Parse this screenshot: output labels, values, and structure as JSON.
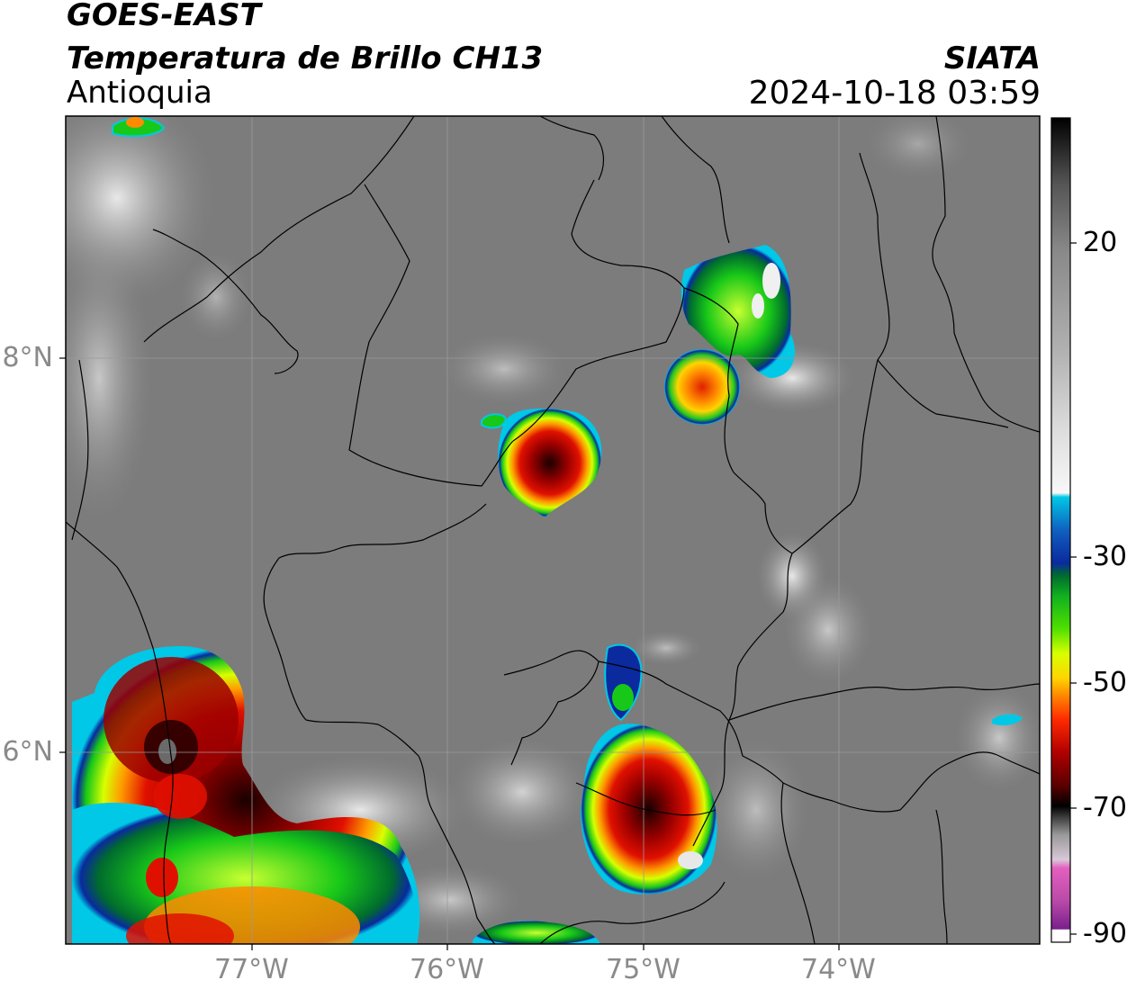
{
  "header": {
    "satellite": "GOES-EAST",
    "product": "Temperatura de Brillo CH13",
    "region": "Antioquia",
    "agency": "SIATA",
    "timestamp": "2024-10-18 03:59"
  },
  "map": {
    "lat_labels": [
      "8°N",
      "6°N"
    ],
    "lon_labels": [
      "77°W",
      "76°W",
      "75°W",
      "74°W"
    ],
    "background_color": "#7a7a7a",
    "border_color": "#000000"
  },
  "colorbar": {
    "tick_labels": [
      "20",
      "-30",
      "-50",
      "-70",
      "-90"
    ],
    "palette": [
      "#ffffff",
      "#7a1f8c",
      "#e45fbf",
      "#bfbfbf",
      "#555555",
      "#000000",
      "#7a0000",
      "#d40000",
      "#ff7a00",
      "#ffd000",
      "#c8ff00",
      "#14c814",
      "#006b2e",
      "#0a2a9e",
      "#00c8e6",
      "#f5f5f5",
      "#8a8a8a",
      "#000000"
    ]
  }
}
